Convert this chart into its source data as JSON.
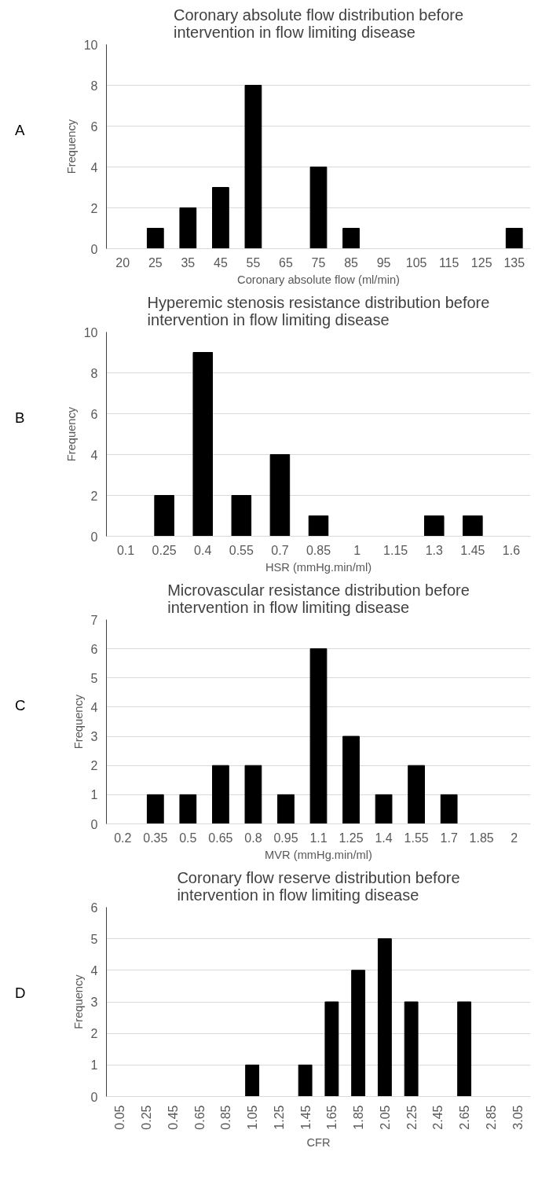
{
  "chart_data": [
    {
      "type": "bar",
      "title": "Coronary absolute flow distribution before\nintervention in flow limiting disease",
      "xlabel": "Coronary absolute flow (ml/min)",
      "ylabel": "Frequency",
      "annotations": [
        "A"
      ],
      "categories": [
        "20",
        "25",
        "35",
        "45",
        "55",
        "65",
        "75",
        "85",
        "95",
        "105",
        "115",
        "125",
        "135"
      ],
      "values": [
        0,
        1,
        2,
        3,
        8,
        0,
        4,
        1,
        0,
        0,
        0,
        0,
        1
      ],
      "color": "#000000",
      "ylim": [
        0,
        10
      ],
      "yticks": [
        0,
        2,
        4,
        6,
        8,
        10
      ],
      "grid": "y"
    },
    {
      "type": "bar",
      "title": "Hyperemic stenosis resistance distribution before\nintervention in flow limiting disease",
      "xlabel": "HSR (mmHg.min/ml)",
      "ylabel": "Frequency",
      "annotations": [
        "B"
      ],
      "categories": [
        "0.1",
        "0.25",
        "0.4",
        "0.55",
        "0.7",
        "0.85",
        "1",
        "1.15",
        "1.3",
        "1.45",
        "1.6"
      ],
      "values": [
        0,
        2,
        9,
        2,
        4,
        1,
        0,
        0,
        1,
        1,
        0
      ],
      "color": "#000000",
      "ylim": [
        0,
        10
      ],
      "yticks": [
        0,
        2,
        4,
        6,
        8,
        10
      ],
      "grid": "y"
    },
    {
      "type": "bar",
      "title": "Microvascular resistance distribution before\nintervention in flow limiting disease",
      "xlabel": "MVR (mmHg.min/ml)",
      "ylabel": "Frequency",
      "annotations": [
        "C"
      ],
      "categories": [
        "0.2",
        "0.35",
        "0.5",
        "0.65",
        "0.8",
        "0.95",
        "1.1",
        "1.25",
        "1.4",
        "1.55",
        "1.7",
        "1.85",
        "2"
      ],
      "values": [
        0,
        1,
        1,
        2,
        2,
        1,
        6,
        3,
        1,
        2,
        1,
        0,
        0
      ],
      "color": "#000000",
      "ylim": [
        0,
        7
      ],
      "yticks": [
        0,
        1,
        2,
        3,
        4,
        5,
        6,
        7
      ],
      "grid": "y"
    },
    {
      "type": "bar",
      "title": "Coronary flow reserve distribution before\nintervention in flow limiting disease",
      "xlabel": "CFR",
      "ylabel": "Frequency",
      "annotations": [
        "D"
      ],
      "categories": [
        "0.05",
        "0.25",
        "0.45",
        "0.65",
        "0.85",
        "1.05",
        "1.25",
        "1.45",
        "1.65",
        "1.85",
        "2.05",
        "2.25",
        "2.45",
        "2.65",
        "2.85",
        "3.05"
      ],
      "values": [
        0,
        0,
        0,
        0,
        0,
        1,
        0,
        1,
        3,
        4,
        5,
        3,
        0,
        3,
        0,
        0
      ],
      "color": "#000000",
      "ylim": [
        0,
        6
      ],
      "yticks": [
        0,
        1,
        2,
        3,
        4,
        5,
        6
      ],
      "grid": "y"
    }
  ]
}
